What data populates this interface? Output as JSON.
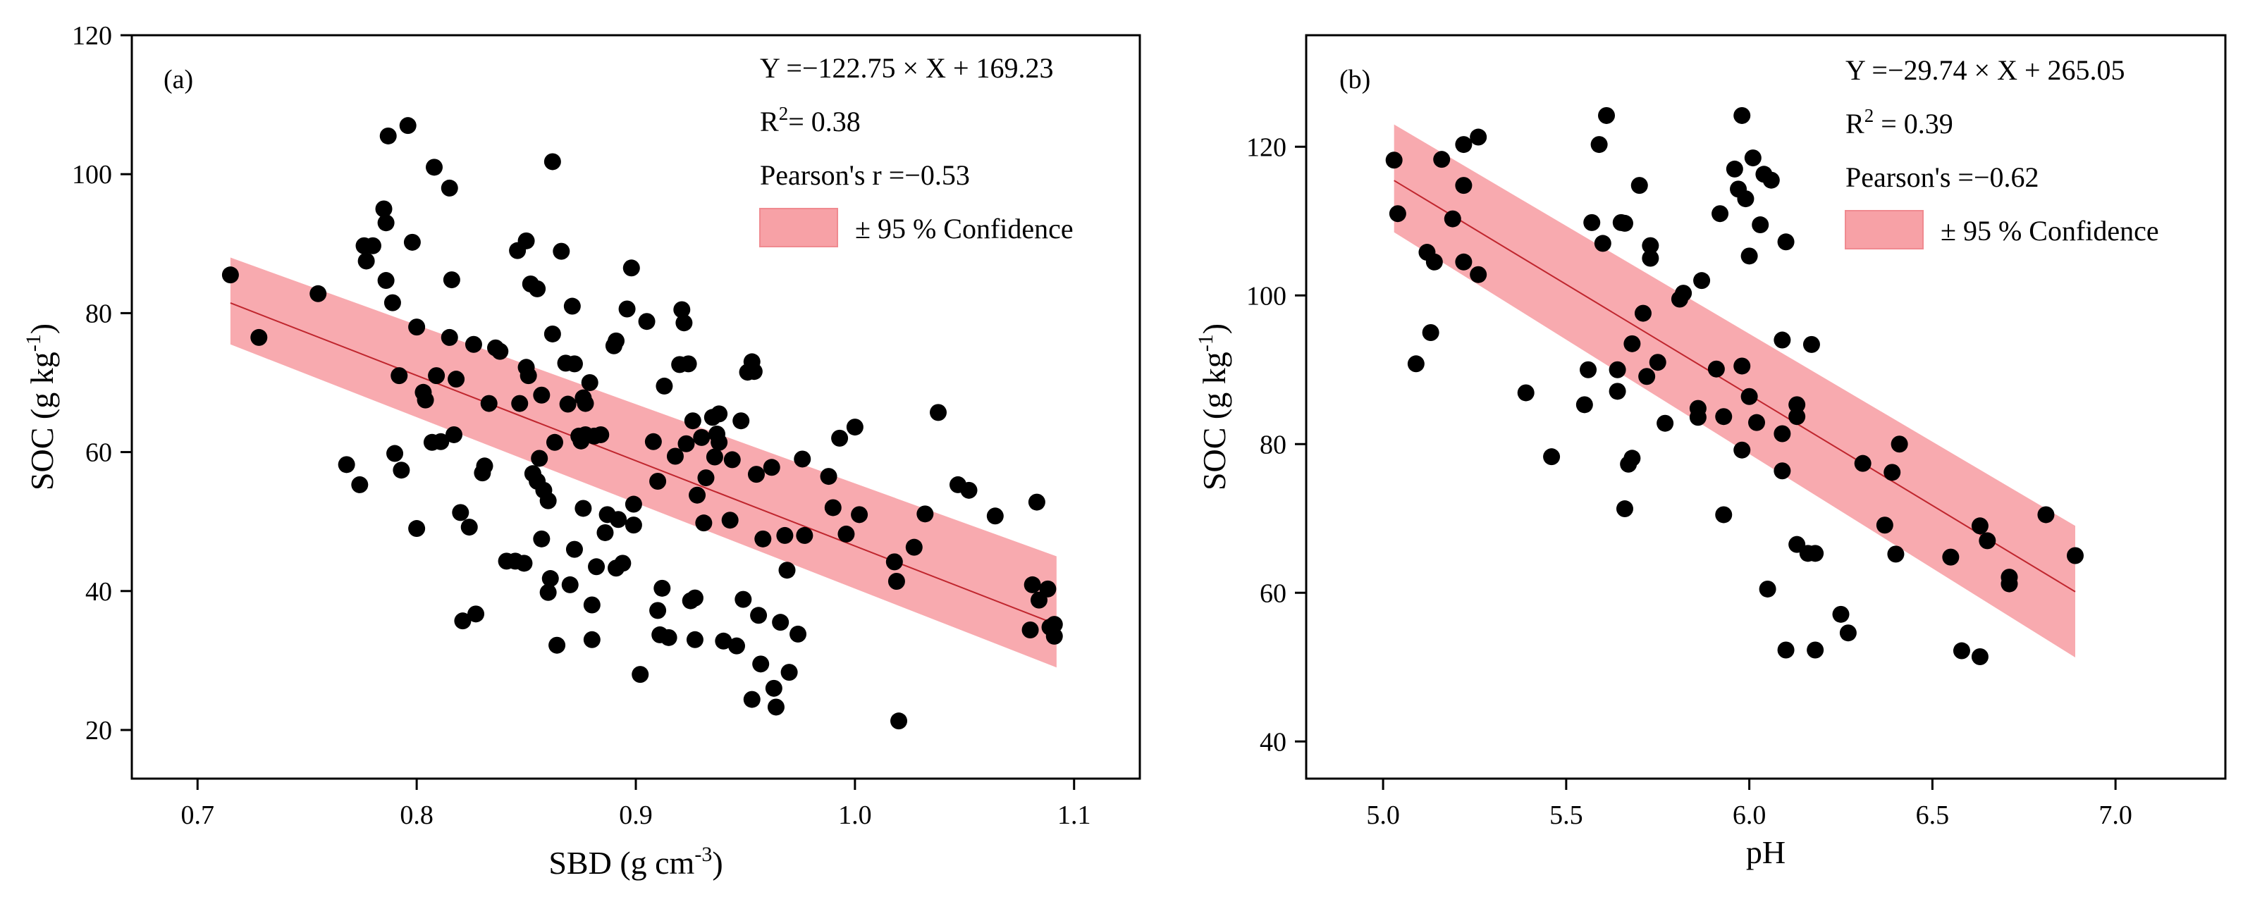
{
  "chart_data": [
    {
      "type": "scatter",
      "panel_label": "(a)",
      "xlabel": "SBD (g cm",
      "xlabel_sup": "-3",
      "xlabel_end": ")",
      "ylabel": "SOC (g kg",
      "ylabel_sup": "-1",
      "ylabel_end": ")",
      "xlim": [
        0.67,
        1.13
      ],
      "ylim": [
        13,
        120
      ],
      "xticks": [
        0.7,
        0.8,
        0.9,
        1.0,
        1.1
      ],
      "xtick_labels": [
        "0.7",
        "0.8",
        "0.9",
        "1.0",
        "1.1"
      ],
      "yticks": [
        20,
        40,
        60,
        80,
        100,
        120
      ],
      "ytick_labels": [
        "20",
        "40",
        "60",
        "80",
        "100",
        "120"
      ],
      "equation": "Y =−122.75 × X + 169.23",
      "r2_label": "R",
      "r2_sup": "2",
      "r2_value": "= 0.38",
      "pearson": "Pearson's r =−0.53",
      "legend_label": "± 95 % Confidence",
      "legend_position": "top-right",
      "fit": {
        "slope": -122.75,
        "intercept": 169.23,
        "x_range": [
          0.715,
          1.092
        ]
      },
      "band": {
        "x": [
          0.715,
          1.092
        ],
        "upper": [
          88,
          45
        ],
        "lower": [
          75.5,
          29
        ]
      },
      "points": [
        [
          0.715,
          85.5
        ],
        [
          0.728,
          76.5
        ],
        [
          0.755,
          82.8
        ],
        [
          0.768,
          58.2
        ],
        [
          0.774,
          55.3
        ],
        [
          0.776,
          89.7
        ],
        [
          0.777,
          87.5
        ],
        [
          0.78,
          89.7
        ],
        [
          0.785,
          95
        ],
        [
          0.786,
          93
        ],
        [
          0.786,
          84.7
        ],
        [
          0.787,
          105.5
        ],
        [
          0.789,
          81.5
        ],
        [
          0.79,
          59.8
        ],
        [
          0.792,
          71
        ],
        [
          0.793,
          57.4
        ],
        [
          0.796,
          107
        ],
        [
          0.798,
          90.2
        ],
        [
          0.8,
          49
        ],
        [
          0.8,
          78
        ],
        [
          0.803,
          68.6
        ],
        [
          0.804,
          67.5
        ],
        [
          0.807,
          61.4
        ],
        [
          0.808,
          101
        ],
        [
          0.809,
          71
        ],
        [
          0.811,
          61.5
        ],
        [
          0.815,
          98
        ],
        [
          0.815,
          76.5
        ],
        [
          0.816,
          84.8
        ],
        [
          0.817,
          62.5
        ],
        [
          0.818,
          70.5
        ],
        [
          0.82,
          51.3
        ],
        [
          0.821,
          35.7
        ],
        [
          0.824,
          49.2
        ],
        [
          0.826,
          75.5
        ],
        [
          0.827,
          36.7
        ],
        [
          0.83,
          57
        ],
        [
          0.831,
          58
        ],
        [
          0.833,
          67
        ],
        [
          0.836,
          75
        ],
        [
          0.838,
          74.5
        ],
        [
          0.841,
          44.3
        ],
        [
          0.845,
          44.3
        ],
        [
          0.846,
          89
        ],
        [
          0.847,
          67
        ],
        [
          0.849,
          44
        ],
        [
          0.85,
          90.4
        ],
        [
          0.85,
          72.2
        ],
        [
          0.851,
          71
        ],
        [
          0.852,
          84.2
        ],
        [
          0.853,
          56.9
        ],
        [
          0.855,
          83.5
        ],
        [
          0.855,
          55.8
        ],
        [
          0.856,
          59.1
        ],
        [
          0.857,
          68.2
        ],
        [
          0.857,
          47.5
        ],
        [
          0.858,
          54.5
        ],
        [
          0.86,
          53
        ],
        [
          0.86,
          39.8
        ],
        [
          0.861,
          41.8
        ],
        [
          0.862,
          101.8
        ],
        [
          0.862,
          77
        ],
        [
          0.863,
          61.4
        ],
        [
          0.864,
          32.2
        ],
        [
          0.866,
          88.9
        ],
        [
          0.868,
          72.8
        ],
        [
          0.869,
          66.9
        ],
        [
          0.87,
          40.9
        ],
        [
          0.871,
          81
        ],
        [
          0.872,
          72.7
        ],
        [
          0.872,
          46
        ],
        [
          0.874,
          62.3
        ],
        [
          0.875,
          61.6
        ],
        [
          0.876,
          51.9
        ],
        [
          0.876,
          67.8
        ],
        [
          0.877,
          62.5
        ],
        [
          0.877,
          67
        ],
        [
          0.879,
          70
        ],
        [
          0.88,
          38
        ],
        [
          0.88,
          33
        ],
        [
          0.881,
          62.3
        ],
        [
          0.882,
          43.5
        ],
        [
          0.884,
          62.5
        ],
        [
          0.886,
          48.4
        ],
        [
          0.887,
          51
        ],
        [
          0.89,
          75.3
        ],
        [
          0.891,
          76
        ],
        [
          0.891,
          43.3
        ],
        [
          0.892,
          50.3
        ],
        [
          0.894,
          44
        ],
        [
          0.896,
          80.6
        ],
        [
          0.898,
          86.5
        ],
        [
          0.899,
          52.5
        ],
        [
          0.899,
          49.5
        ],
        [
          0.902,
          28
        ],
        [
          0.905,
          78.8
        ],
        [
          0.908,
          61.5
        ],
        [
          0.91,
          55.8
        ],
        [
          0.91,
          37.2
        ],
        [
          0.911,
          33.7
        ],
        [
          0.912,
          40.4
        ],
        [
          0.913,
          69.5
        ],
        [
          0.915,
          33.3
        ],
        [
          0.918,
          59.4
        ],
        [
          0.92,
          72.6
        ],
        [
          0.921,
          80.5
        ],
        [
          0.922,
          78.6
        ],
        [
          0.923,
          61.2
        ],
        [
          0.924,
          72.7
        ],
        [
          0.925,
          38.6
        ],
        [
          0.926,
          64.5
        ],
        [
          0.927,
          39
        ],
        [
          0.927,
          33
        ],
        [
          0.928,
          53.8
        ],
        [
          0.93,
          62.1
        ],
        [
          0.931,
          49.8
        ],
        [
          0.932,
          56.3
        ],
        [
          0.935,
          65
        ],
        [
          0.936,
          59.3
        ],
        [
          0.937,
          62.6
        ],
        [
          0.938,
          65.5
        ],
        [
          0.938,
          61.4
        ],
        [
          0.94,
          32.8
        ],
        [
          0.943,
          50.2
        ],
        [
          0.944,
          58.9
        ],
        [
          0.946,
          32.1
        ],
        [
          0.948,
          64.5
        ],
        [
          0.949,
          38.8
        ],
        [
          0.951,
          71.5
        ],
        [
          0.953,
          73
        ],
        [
          0.953,
          24.4
        ],
        [
          0.954,
          71.6
        ],
        [
          0.955,
          56.8
        ],
        [
          0.956,
          36.5
        ],
        [
          0.957,
          29.5
        ],
        [
          0.958,
          47.5
        ],
        [
          0.962,
          57.8
        ],
        [
          0.963,
          26
        ],
        [
          0.964,
          23.3
        ],
        [
          0.966,
          35.5
        ],
        [
          0.968,
          48
        ],
        [
          0.969,
          43
        ],
        [
          0.97,
          28.3
        ],
        [
          0.974,
          33.8
        ],
        [
          0.976,
          59
        ],
        [
          0.977,
          48
        ],
        [
          0.988,
          56.5
        ],
        [
          0.99,
          52
        ],
        [
          0.993,
          62
        ],
        [
          0.996,
          48.2
        ],
        [
          1.0,
          63.6
        ],
        [
          1.002,
          51
        ],
        [
          1.018,
          44.2
        ],
        [
          1.019,
          41.4
        ],
        [
          1.027,
          46.3
        ],
        [
          1.032,
          51.1
        ],
        [
          1.038,
          65.7
        ],
        [
          1.047,
          55.3
        ],
        [
          1.052,
          54.5
        ],
        [
          1.064,
          50.8
        ],
        [
          1.08,
          34.4
        ],
        [
          1.081,
          40.9
        ],
        [
          1.083,
          52.8
        ],
        [
          1.084,
          38.7
        ],
        [
          1.088,
          40.3
        ],
        [
          1.089,
          34.8
        ],
        [
          1.091,
          33.5
        ],
        [
          1.091,
          35.2
        ],
        [
          1.02,
          21.3
        ]
      ]
    },
    {
      "type": "scatter",
      "panel_label": "(b)",
      "xlabel": "pH",
      "xlabel_sup": "",
      "xlabel_end": "",
      "ylabel": "SOC (g kg",
      "ylabel_sup": "-1",
      "ylabel_end": ")",
      "xlim": [
        4.79,
        7.3
      ],
      "ylim": [
        35,
        135
      ],
      "xticks": [
        5.0,
        5.5,
        6.0,
        6.5,
        7.0
      ],
      "xtick_labels": [
        "5.0",
        "5.5",
        "6.0",
        "6.5",
        "7.0"
      ],
      "yticks": [
        40,
        60,
        80,
        100,
        120
      ],
      "ytick_labels": [
        "40",
        "60",
        "80",
        "100",
        "120"
      ],
      "equation": "Y =−29.74 × X + 265.05",
      "r2_label": "R",
      "r2_sup": "2",
      "r2_value": " = 0.39",
      "pearson": "Pearson's =−0.62",
      "legend_label": "± 95 % Confidence",
      "legend_position": "top-right",
      "fit": {
        "slope": -29.74,
        "intercept": 265.05,
        "x_range": [
          5.03,
          6.89
        ]
      },
      "band": {
        "x": [
          5.03,
          6.89
        ],
        "upper": [
          123,
          69
        ],
        "lower": [
          108.5,
          51.3
        ]
      },
      "points": [
        [
          5.03,
          118.2
        ],
        [
          5.04,
          111
        ],
        [
          5.09,
          90.8
        ],
        [
          5.12,
          105.8
        ],
        [
          5.13,
          95
        ],
        [
          5.14,
          104.5
        ],
        [
          5.16,
          118.3
        ],
        [
          5.19,
          110.3
        ],
        [
          5.22,
          120.3
        ],
        [
          5.22,
          114.8
        ],
        [
          5.22,
          104.5
        ],
        [
          5.26,
          121.3
        ],
        [
          5.26,
          102.8
        ],
        [
          5.39,
          86.9
        ],
        [
          5.46,
          78.3
        ],
        [
          5.55,
          85.3
        ],
        [
          5.56,
          90
        ],
        [
          5.57,
          109.8
        ],
        [
          5.59,
          120.3
        ],
        [
          5.6,
          107
        ],
        [
          5.61,
          124.2
        ],
        [
          5.64,
          87.1
        ],
        [
          5.64,
          90
        ],
        [
          5.65,
          109.8
        ],
        [
          5.66,
          109.7
        ],
        [
          5.66,
          71.3
        ],
        [
          5.67,
          77.3
        ],
        [
          5.68,
          78.1
        ],
        [
          5.68,
          93.5
        ],
        [
          5.7,
          114.8
        ],
        [
          5.71,
          97.6
        ],
        [
          5.72,
          89.1
        ],
        [
          5.73,
          105
        ],
        [
          5.73,
          106.7
        ],
        [
          5.75,
          91
        ],
        [
          5.77,
          82.8
        ],
        [
          5.81,
          99.5
        ],
        [
          5.82,
          100.3
        ],
        [
          5.86,
          84.8
        ],
        [
          5.86,
          83.6
        ],
        [
          5.87,
          102
        ],
        [
          5.91,
          90.1
        ],
        [
          5.92,
          111
        ],
        [
          5.93,
          70.5
        ],
        [
          5.93,
          83.7
        ],
        [
          5.96,
          117
        ],
        [
          5.97,
          114.3
        ],
        [
          5.98,
          124.2
        ],
        [
          5.98,
          79.2
        ],
        [
          5.98,
          90.5
        ],
        [
          5.99,
          113
        ],
        [
          6.0,
          105.3
        ],
        [
          6.0,
          86.4
        ],
        [
          6.01,
          118.5
        ],
        [
          6.02,
          82.9
        ],
        [
          6.03,
          109.5
        ],
        [
          6.04,
          116.3
        ],
        [
          6.05,
          60.5
        ],
        [
          6.06,
          115.5
        ],
        [
          6.09,
          94
        ],
        [
          6.09,
          76.4
        ],
        [
          6.09,
          81.4
        ],
        [
          6.1,
          107.2
        ],
        [
          6.1,
          52.3
        ],
        [
          6.13,
          66.5
        ],
        [
          6.13,
          83.7
        ],
        [
          6.13,
          85.3
        ],
        [
          6.16,
          65.3
        ],
        [
          6.17,
          93.4
        ],
        [
          6.18,
          65.3
        ],
        [
          6.18,
          52.3
        ],
        [
          6.25,
          57.1
        ],
        [
          6.27,
          54.6
        ],
        [
          6.31,
          77.4
        ],
        [
          6.37,
          69.1
        ],
        [
          6.39,
          76.2
        ],
        [
          6.4,
          65.2
        ],
        [
          6.41,
          80
        ],
        [
          6.55,
          64.8
        ],
        [
          6.58,
          52.2
        ],
        [
          6.63,
          51.4
        ],
        [
          6.63,
          69
        ],
        [
          6.65,
          67
        ],
        [
          6.71,
          61.2
        ],
        [
          6.71,
          62.1
        ],
        [
          6.81,
          70.5
        ],
        [
          6.89,
          65
        ]
      ]
    }
  ]
}
